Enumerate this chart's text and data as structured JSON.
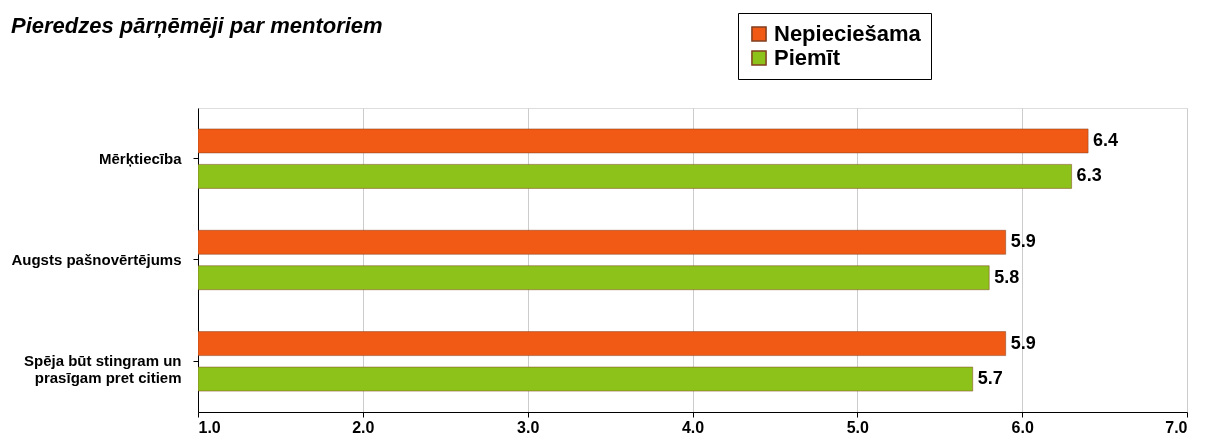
{
  "chart_data": {
    "type": "bar",
    "orientation": "horizontal",
    "title": "Pieredzes pārņēmēji par mentoriem",
    "categories": [
      "Mērķtiecība",
      "Augsts pašnovērtējums",
      "Spēja būt stingram un prasīgam pret citiem"
    ],
    "series": [
      {
        "name": "Nepieciešama",
        "color": "#f05a14",
        "values": [
          6.4,
          5.9,
          5.9
        ]
      },
      {
        "name": "Piemīt",
        "color": "#8cc21a",
        "values": [
          6.3,
          5.8,
          5.7
        ]
      }
    ],
    "xlim": [
      1,
      7
    ],
    "xticks": [
      {
        "value": 1,
        "label": "1.0"
      },
      {
        "value": 2,
        "label": "2.0"
      },
      {
        "value": 3,
        "label": "3.0"
      },
      {
        "value": 4,
        "label": "4.0"
      },
      {
        "value": 5,
        "label": "5.0"
      },
      {
        "value": 6,
        "label": "6.0"
      },
      {
        "value": 7,
        "label": "7.0"
      }
    ],
    "grid": "x",
    "legend": "top right",
    "data_labels": true
  }
}
